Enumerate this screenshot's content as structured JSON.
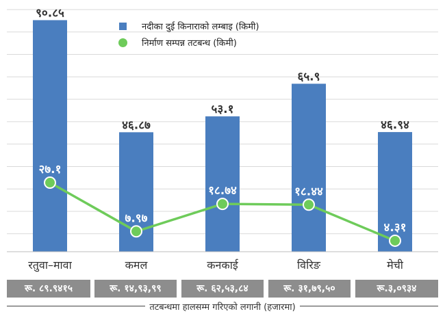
{
  "chart_data": {
    "type": "bar",
    "categories": [
      "रतुवा–मावा",
      "कमल",
      "कनकाई",
      "विरिङ",
      "मेची"
    ],
    "series": [
      {
        "name": "नदीका दुई किनाराको लम्बाइ (किमी)",
        "type": "bar",
        "color": "#4a7ebf",
        "values": [
          90.85,
          46.87,
          53.1,
          65.9,
          46.94
        ],
        "labels": [
          "९०.८५",
          "४६.८७",
          "५३.१",
          "६५.९",
          "४६.९४"
        ]
      },
      {
        "name": "निर्माण सम्पन्न तटबन्ध (किमी)",
        "type": "line",
        "color": "#6ecb5a",
        "values": [
          27.1,
          7.97,
          18.74,
          18.44,
          4.31
        ],
        "labels": [
          "२७.१",
          "७.९७",
          "१८.७४",
          "१८.४४",
          "४.३१"
        ]
      }
    ],
    "ylim": [
      0,
      95
    ],
    "grid": true,
    "legend_position": "top",
    "investment": {
      "title": "तटबन्धमा हालसम्म गरिएको लगानी (हजारमा)",
      "values": [
        "रू. ८९.९४१५",
        "रू. १४,९३,९९",
        "रू. ६२,५३,८४",
        "रू. ३१,७९,५०",
        "रू.३,०९३४"
      ]
    }
  }
}
